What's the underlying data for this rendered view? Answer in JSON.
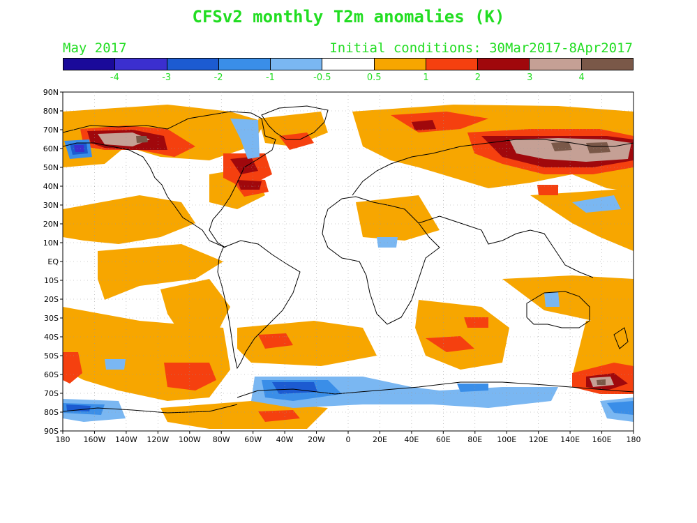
{
  "header": {
    "title": "CFSv2 monthly T2m anomalies (K)",
    "month": "May 2017",
    "init": "Initial conditions: 30Mar2017-8Apr2017"
  },
  "colorbar": {
    "colors": [
      "#1a0a9a",
      "#3b2fcf",
      "#1c5bd1",
      "#3a8ee8",
      "#7ab7f2",
      "#ffffff",
      "#f7a600",
      "#f5400f",
      "#a0080c",
      "#c5a095",
      "#7a5848"
    ],
    "labels": [
      "-4",
      "-3",
      "-2",
      "-1",
      "-0.5",
      "0.5",
      "1",
      "2",
      "3",
      "4"
    ]
  },
  "axes": {
    "lat_labels": [
      "90N",
      "80N",
      "70N",
      "60N",
      "50N",
      "40N",
      "30N",
      "20N",
      "10N",
      "EQ",
      "10S",
      "20S",
      "30S",
      "40S",
      "50S",
      "60S",
      "70S",
      "80S",
      "90S"
    ],
    "lon_labels": [
      "180",
      "160W",
      "140W",
      "120W",
      "100W",
      "80W",
      "60W",
      "40W",
      "20W",
      "0",
      "20E",
      "40E",
      "60E",
      "80E",
      "100E",
      "120E",
      "140E",
      "160E",
      "180"
    ]
  }
}
